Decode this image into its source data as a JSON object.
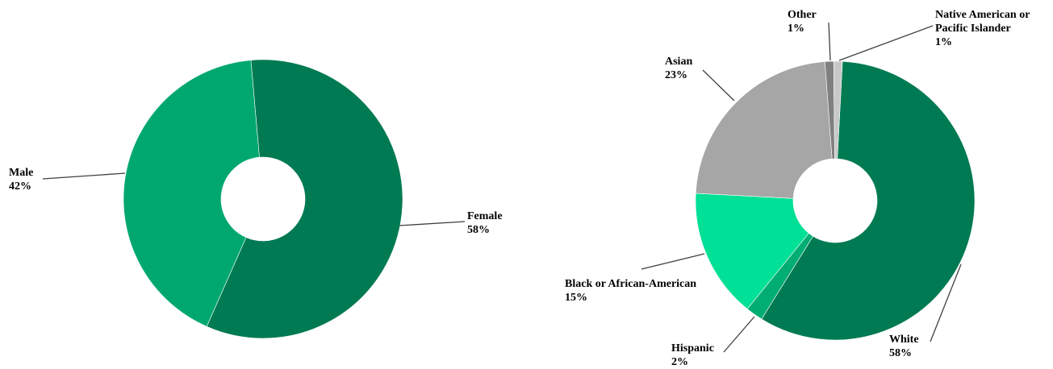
{
  "chart_data": [
    {
      "type": "pie",
      "variant": "donut",
      "slices": [
        {
          "label": "Female",
          "value": 58,
          "value_label": "58%",
          "color": "#007A52"
        },
        {
          "label": "Male",
          "value": 42,
          "value_label": "42%",
          "color": "#00A86F"
        }
      ]
    },
    {
      "type": "pie",
      "variant": "donut",
      "slices": [
        {
          "label": "White",
          "value": 58,
          "value_label": "58%",
          "color": "#007A52"
        },
        {
          "label": "Hispanic",
          "value": 2,
          "value_label": "2%",
          "color": "#00AD72"
        },
        {
          "label": "Black or African-American",
          "value": 15,
          "value_label": "15%",
          "color": "#00E096"
        },
        {
          "label": "Asian",
          "value": 23,
          "value_label": "23%",
          "color": "#A6A6A6"
        },
        {
          "label": "Other",
          "value": 1,
          "value_label": "1%",
          "color": "#808080"
        },
        {
          "label": [
            "Native American or",
            "Pacific Islander"
          ],
          "value": 1,
          "value_label": "1%",
          "color": "#C8C8C8"
        }
      ]
    }
  ]
}
